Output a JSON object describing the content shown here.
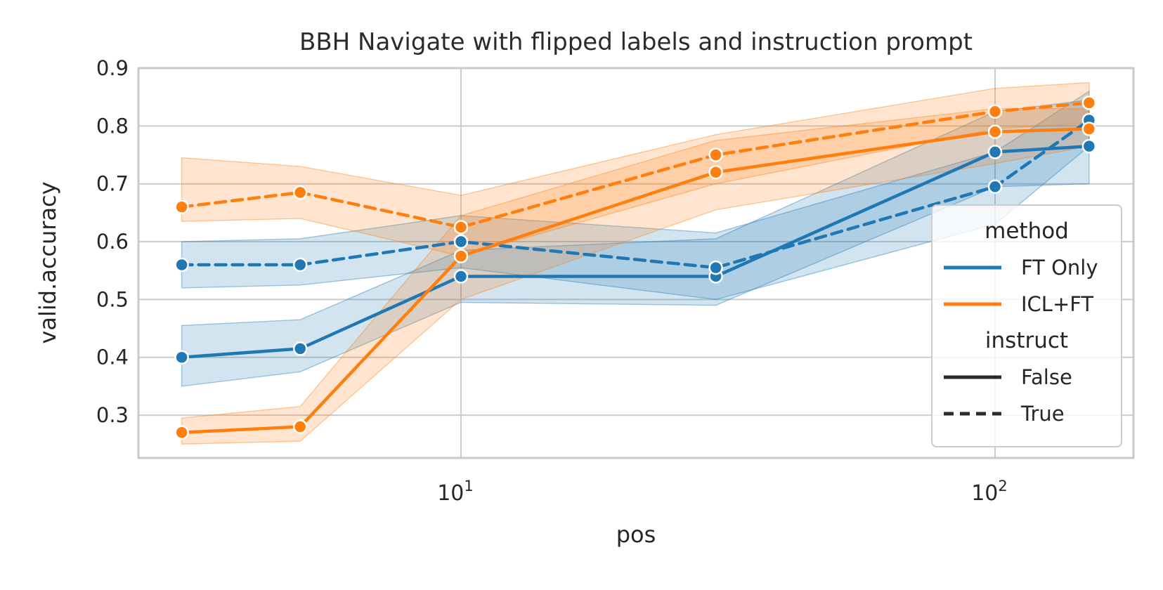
{
  "title": "BBH Navigate with flipped labels and instruction prompt",
  "axes": {
    "xlabel": "pos",
    "ylabel": "valid.accuracy",
    "x_scale": "log",
    "y_tick_labels": [
      "0.9",
      "0.8",
      "0.7",
      "0.6",
      "0.5",
      "0.4",
      "0.3"
    ],
    "x_tick_base": "10",
    "x_tick_exponents": [
      "1",
      "2"
    ]
  },
  "legend": {
    "groups": [
      {
        "title": "method",
        "entries": [
          {
            "label": "FT Only",
            "color": "#1f77b4",
            "dashed": false
          },
          {
            "label": "ICL+FT",
            "color": "#ff7f0e",
            "dashed": false
          }
        ]
      },
      {
        "title": "instruct",
        "entries": [
          {
            "label": "False",
            "color": "#2b2b2b",
            "dashed": false
          },
          {
            "label": "True",
            "color": "#2b2b2b",
            "dashed": true
          }
        ]
      }
    ]
  },
  "colors": {
    "blue": "#1f77b4",
    "orange": "#ff7f0e",
    "grid": "#cccccc",
    "spine": "#c9c9c9",
    "text": "#262626"
  },
  "chart_data": {
    "type": "line",
    "title": "BBH Navigate with flipped labels and instruction prompt",
    "xlabel": "pos",
    "ylabel": "valid.accuracy",
    "x_scale": "log",
    "grid": true,
    "legend_position": "lower right",
    "xlim": [
      2.47,
      182
    ],
    "ylim": [
      0.226,
      0.9
    ],
    "x_ticks": [
      10,
      100
    ],
    "y_ticks": [
      0.3,
      0.4,
      0.5,
      0.6,
      0.7,
      0.8,
      0.9
    ],
    "x": [
      3,
      5,
      10,
      30,
      100,
      150
    ],
    "series": [
      {
        "name": "FT Only instruct=False",
        "method": "FT Only",
        "instruct": "False",
        "color": "#1f77b4",
        "linestyle": "solid",
        "values": [
          0.4,
          0.415,
          0.54,
          0.54,
          0.755,
          0.765
        ],
        "band_low": [
          0.35,
          0.375,
          0.495,
          0.49,
          0.695,
          0.7
        ],
        "band_high": [
          0.455,
          0.465,
          0.585,
          0.605,
          0.825,
          0.845
        ]
      },
      {
        "name": "FT Only instruct=True",
        "method": "FT Only",
        "instruct": "True",
        "color": "#1f77b4",
        "linestyle": "dashed",
        "values": [
          0.56,
          0.56,
          0.6,
          0.555,
          0.695,
          0.81
        ],
        "band_low": [
          0.52,
          0.525,
          0.555,
          0.5,
          0.63,
          0.765
        ],
        "band_high": [
          0.6,
          0.605,
          0.645,
          0.615,
          0.755,
          0.86
        ]
      },
      {
        "name": "ICL+FT instruct=False",
        "method": "ICL+FT",
        "instruct": "False",
        "color": "#ff7f0e",
        "linestyle": "solid",
        "values": [
          0.27,
          0.28,
          0.575,
          0.72,
          0.79,
          0.795
        ],
        "band_low": [
          0.25,
          0.255,
          0.5,
          0.655,
          0.735,
          0.765
        ],
        "band_high": [
          0.295,
          0.315,
          0.645,
          0.775,
          0.83,
          0.83
        ]
      },
      {
        "name": "ICL+FT instruct=True",
        "method": "ICL+FT",
        "instruct": "True",
        "color": "#ff7f0e",
        "linestyle": "dashed",
        "values": [
          0.66,
          0.685,
          0.625,
          0.75,
          0.825,
          0.84
        ],
        "band_low": [
          0.635,
          0.64,
          0.575,
          0.7,
          0.795,
          0.805
        ],
        "band_high": [
          0.745,
          0.73,
          0.68,
          0.785,
          0.865,
          0.875
        ]
      }
    ]
  }
}
